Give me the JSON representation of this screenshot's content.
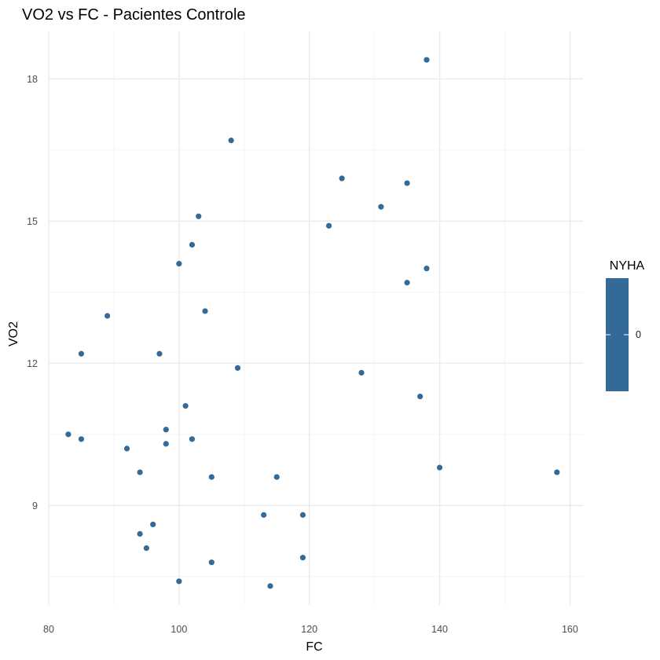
{
  "chart_data": {
    "type": "scatter",
    "title": "VO2 vs FC - Pacientes Controle",
    "xlabel": "FC",
    "ylabel": "VO2",
    "xlim": [
      80,
      162
    ],
    "ylim": [
      6.9,
      19.0
    ],
    "x_ticks": [
      80,
      100,
      120,
      140,
      160
    ],
    "y_ticks": [
      9,
      12,
      15,
      18
    ],
    "grid": true,
    "point_color": "#336a98",
    "legend": {
      "title": "NYHA",
      "placement": "right",
      "labels": [
        "0"
      ],
      "color": "#336a98"
    },
    "points": [
      {
        "x": 138,
        "y": 18.4
      },
      {
        "x": 108,
        "y": 16.7
      },
      {
        "x": 125,
        "y": 15.9
      },
      {
        "x": 135,
        "y": 15.8
      },
      {
        "x": 131,
        "y": 15.3
      },
      {
        "x": 103,
        "y": 15.1
      },
      {
        "x": 123,
        "y": 14.9
      },
      {
        "x": 102,
        "y": 14.5
      },
      {
        "x": 100,
        "y": 14.1
      },
      {
        "x": 138,
        "y": 14.0
      },
      {
        "x": 135,
        "y": 13.7
      },
      {
        "x": 104,
        "y": 13.1
      },
      {
        "x": 89,
        "y": 13.0
      },
      {
        "x": 85,
        "y": 12.2
      },
      {
        "x": 97,
        "y": 12.2
      },
      {
        "x": 109,
        "y": 11.9
      },
      {
        "x": 128,
        "y": 11.8
      },
      {
        "x": 137,
        "y": 11.3
      },
      {
        "x": 101,
        "y": 11.1
      },
      {
        "x": 98,
        "y": 10.6
      },
      {
        "x": 83,
        "y": 10.5
      },
      {
        "x": 85,
        "y": 10.4
      },
      {
        "x": 102,
        "y": 10.4
      },
      {
        "x": 98,
        "y": 10.3
      },
      {
        "x": 92,
        "y": 10.2
      },
      {
        "x": 140,
        "y": 9.8
      },
      {
        "x": 94,
        "y": 9.7
      },
      {
        "x": 158,
        "y": 9.7
      },
      {
        "x": 105,
        "y": 9.6
      },
      {
        "x": 115,
        "y": 9.6
      },
      {
        "x": 113,
        "y": 8.8
      },
      {
        "x": 119,
        "y": 8.8
      },
      {
        "x": 96,
        "y": 8.6
      },
      {
        "x": 94,
        "y": 8.4
      },
      {
        "x": 95,
        "y": 8.1
      },
      {
        "x": 119,
        "y": 7.9
      },
      {
        "x": 105,
        "y": 7.8
      },
      {
        "x": 100,
        "y": 7.4
      },
      {
        "x": 114,
        "y": 7.3
      }
    ]
  }
}
